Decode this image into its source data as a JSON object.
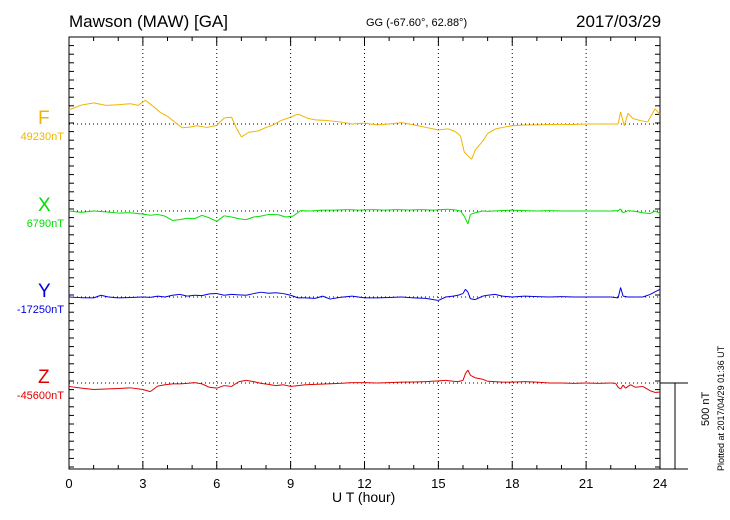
{
  "header": {
    "title": "Mawson (MAW)  [GA]",
    "coords": "GG (-67.60°,  62.88°)",
    "date": "2017/03/29"
  },
  "side_note": "Plotted at 2017/04/29 01:36 UT",
  "scale_label": "500 nT",
  "chart_data": {
    "type": "line",
    "xlabel": "U T (hour)",
    "xlim": [
      0,
      24
    ],
    "x_ticks": [
      0,
      3,
      6,
      9,
      12,
      15,
      18,
      21,
      24
    ],
    "x_tick_labels": [
      "0",
      "3",
      "6",
      "9",
      "12",
      "15",
      "18",
      "21",
      "24"
    ],
    "scale_bar_nT": 500,
    "grid": "dotted baselines",
    "series": [
      {
        "name": "F",
        "baseline_label": "49230nT",
        "baseline_nT": 49230,
        "color": "#f0b400",
        "points": [
          [
            0,
            82
          ],
          [
            0.5,
            110
          ],
          [
            1,
            123
          ],
          [
            1.5,
            108
          ],
          [
            2,
            112
          ],
          [
            2.5,
            118
          ],
          [
            2.8,
            108
          ],
          [
            3.1,
            138
          ],
          [
            3.4,
            105
          ],
          [
            3.7,
            68
          ],
          [
            4,
            45
          ],
          [
            4.3,
            10
          ],
          [
            4.6,
            -22
          ],
          [
            4.9,
            -18
          ],
          [
            5.2,
            -10
          ],
          [
            5.6,
            -20
          ],
          [
            6,
            -8
          ],
          [
            6.3,
            35
          ],
          [
            6.6,
            40
          ],
          [
            6.8,
            -25
          ],
          [
            7,
            -75
          ],
          [
            7.3,
            -48
          ],
          [
            7.7,
            -40
          ],
          [
            8,
            -20
          ],
          [
            8.3,
            -5
          ],
          [
            8.6,
            20
          ],
          [
            9,
            40
          ],
          [
            9.3,
            58
          ],
          [
            9.7,
            33
          ],
          [
            10,
            24
          ],
          [
            10.5,
            20
          ],
          [
            11,
            12
          ],
          [
            11.5,
            0
          ],
          [
            12,
            5
          ],
          [
            12.5,
            -5
          ],
          [
            13,
            0
          ],
          [
            13.5,
            8
          ],
          [
            14,
            -5
          ],
          [
            14.5,
            -20
          ],
          [
            15,
            -35
          ],
          [
            15.4,
            -28
          ],
          [
            15.7,
            -45
          ],
          [
            15.9,
            -70
          ],
          [
            16.05,
            -162
          ],
          [
            16.2,
            -185
          ],
          [
            16.35,
            -205
          ],
          [
            16.5,
            -150
          ],
          [
            16.8,
            -100
          ],
          [
            17,
            -55
          ],
          [
            17.3,
            -30
          ],
          [
            17.6,
            -20
          ],
          [
            18,
            -10
          ],
          [
            18.5,
            -6
          ],
          [
            19,
            -5
          ],
          [
            19.5,
            -3
          ],
          [
            20,
            -2
          ],
          [
            20.5,
            -3
          ],
          [
            21,
            0
          ],
          [
            21.5,
            0
          ],
          [
            22,
            0
          ],
          [
            22.3,
            0
          ],
          [
            22.4,
            70
          ],
          [
            22.55,
            -10
          ],
          [
            22.7,
            62
          ],
          [
            22.9,
            32
          ],
          [
            23.2,
            20
          ],
          [
            23.5,
            12
          ],
          [
            23.8,
            88
          ],
          [
            24,
            55
          ]
        ]
      },
      {
        "name": "X",
        "baseline_label": "6790nT",
        "baseline_nT": 6790,
        "color": "#00e000",
        "points": [
          [
            0,
            0
          ],
          [
            0.5,
            -8
          ],
          [
            1,
            0
          ],
          [
            1.5,
            -5
          ],
          [
            2,
            -12
          ],
          [
            2.5,
            -10
          ],
          [
            3,
            -18
          ],
          [
            3.3,
            -25
          ],
          [
            3.6,
            -20
          ],
          [
            3.9,
            -30
          ],
          [
            4.2,
            -55
          ],
          [
            4.5,
            -50
          ],
          [
            4.8,
            -42
          ],
          [
            5.1,
            -45
          ],
          [
            5.4,
            -25
          ],
          [
            5.7,
            -40
          ],
          [
            6,
            -60
          ],
          [
            6.3,
            -28
          ],
          [
            6.6,
            -35
          ],
          [
            6.9,
            -45
          ],
          [
            7.2,
            -50
          ],
          [
            7.5,
            -35
          ],
          [
            7.8,
            -30
          ],
          [
            8.1,
            -20
          ],
          [
            8.5,
            -22
          ],
          [
            8.8,
            -35
          ],
          [
            9.1,
            -30
          ],
          [
            9.4,
            2
          ],
          [
            9.8,
            0
          ],
          [
            10.3,
            5
          ],
          [
            10.8,
            5
          ],
          [
            11.3,
            8
          ],
          [
            11.8,
            5
          ],
          [
            12.3,
            8
          ],
          [
            12.8,
            5
          ],
          [
            13.3,
            8
          ],
          [
            13.8,
            6
          ],
          [
            14.3,
            8
          ],
          [
            14.8,
            5
          ],
          [
            15.1,
            8
          ],
          [
            15.4,
            10
          ],
          [
            15.7,
            6
          ],
          [
            15.9,
            0
          ],
          [
            16.05,
            -30
          ],
          [
            16.2,
            -75
          ],
          [
            16.3,
            -20
          ],
          [
            16.5,
            -10
          ],
          [
            16.8,
            0
          ],
          [
            17,
            -2
          ],
          [
            17.5,
            2
          ],
          [
            18,
            5
          ],
          [
            18.5,
            2
          ],
          [
            19,
            0
          ],
          [
            19.5,
            2
          ],
          [
            20,
            0
          ],
          [
            20.5,
            0
          ],
          [
            21,
            0
          ],
          [
            21.5,
            0
          ],
          [
            22,
            0
          ],
          [
            22.3,
            2
          ],
          [
            22.4,
            12
          ],
          [
            22.5,
            -10
          ],
          [
            22.7,
            2
          ],
          [
            23,
            -2
          ],
          [
            23.3,
            -10
          ],
          [
            23.6,
            -15
          ],
          [
            23.8,
            0
          ],
          [
            24,
            -15
          ]
        ]
      },
      {
        "name": "Y",
        "baseline_label": "-17250nT",
        "baseline_nT": -17250,
        "color": "#0000e0",
        "points": [
          [
            0,
            0
          ],
          [
            0.5,
            -4
          ],
          [
            1,
            -5
          ],
          [
            1.3,
            10
          ],
          [
            1.6,
            0
          ],
          [
            2,
            -5
          ],
          [
            2.5,
            -3
          ],
          [
            3,
            0
          ],
          [
            3.3,
            -2
          ],
          [
            3.6,
            5
          ],
          [
            3.9,
            0
          ],
          [
            4.2,
            10
          ],
          [
            4.5,
            15
          ],
          [
            4.8,
            5
          ],
          [
            5.1,
            10
          ],
          [
            5.4,
            8
          ],
          [
            5.7,
            18
          ],
          [
            6,
            20
          ],
          [
            6.3,
            10
          ],
          [
            6.6,
            15
          ],
          [
            6.9,
            12
          ],
          [
            7.2,
            10
          ],
          [
            7.5,
            20
          ],
          [
            7.8,
            28
          ],
          [
            8.1,
            22
          ],
          [
            8.4,
            25
          ],
          [
            8.7,
            20
          ],
          [
            9,
            10
          ],
          [
            9.3,
            -5
          ],
          [
            9.6,
            -5
          ],
          [
            10,
            -8
          ],
          [
            10.3,
            5
          ],
          [
            10.6,
            -12
          ],
          [
            11,
            -2
          ],
          [
            11.5,
            5
          ],
          [
            12,
            -5
          ],
          [
            12.5,
            -5
          ],
          [
            13,
            -3
          ],
          [
            13.5,
            0
          ],
          [
            14,
            -5
          ],
          [
            14.5,
            -8
          ],
          [
            14.8,
            -15
          ],
          [
            15,
            -20
          ],
          [
            15.3,
            0
          ],
          [
            15.6,
            5
          ],
          [
            15.8,
            10
          ],
          [
            16,
            20
          ],
          [
            16.1,
            45
          ],
          [
            16.2,
            28
          ],
          [
            16.3,
            -10
          ],
          [
            16.5,
            -15
          ],
          [
            16.8,
            5
          ],
          [
            17,
            10
          ],
          [
            17.3,
            15
          ],
          [
            17.6,
            5
          ],
          [
            18,
            0
          ],
          [
            18.5,
            5
          ],
          [
            19,
            2
          ],
          [
            19.5,
            0
          ],
          [
            20,
            2
          ],
          [
            20.5,
            0
          ],
          [
            21,
            0
          ],
          [
            21.5,
            0
          ],
          [
            22,
            0
          ],
          [
            22.3,
            -5
          ],
          [
            22.4,
            55
          ],
          [
            22.5,
            5
          ],
          [
            22.7,
            0
          ],
          [
            23,
            0
          ],
          [
            23.3,
            0
          ],
          [
            23.6,
            15
          ],
          [
            23.8,
            30
          ],
          [
            24,
            45
          ]
        ]
      },
      {
        "name": "Z",
        "baseline_label": "-45600nT",
        "baseline_nT": -45600,
        "color": "#e00000",
        "points": [
          [
            0,
            -20
          ],
          [
            0.5,
            -30
          ],
          [
            1,
            -38
          ],
          [
            1.5,
            -35
          ],
          [
            2,
            -32
          ],
          [
            2.5,
            -28
          ],
          [
            3,
            -38
          ],
          [
            3.3,
            -50
          ],
          [
            3.6,
            -18
          ],
          [
            3.9,
            -10
          ],
          [
            4.2,
            -5
          ],
          [
            4.5,
            -5
          ],
          [
            4.8,
            -2
          ],
          [
            5.1,
            2
          ],
          [
            5.4,
            -5
          ],
          [
            5.7,
            -25
          ],
          [
            6,
            -30
          ],
          [
            6.3,
            -15
          ],
          [
            6.6,
            -20
          ],
          [
            6.9,
            8
          ],
          [
            7.2,
            15
          ],
          [
            7.5,
            8
          ],
          [
            7.8,
            -2
          ],
          [
            8.1,
            -8
          ],
          [
            8.4,
            -15
          ],
          [
            8.7,
            -10
          ],
          [
            9,
            -20
          ],
          [
            9.3,
            -15
          ],
          [
            9.6,
            -10
          ],
          [
            10,
            -8
          ],
          [
            10.5,
            -5
          ],
          [
            11,
            -2
          ],
          [
            11.5,
            2
          ],
          [
            12,
            2
          ],
          [
            12.5,
            0
          ],
          [
            13,
            2
          ],
          [
            13.5,
            5
          ],
          [
            14,
            6
          ],
          [
            14.5,
            8
          ],
          [
            15,
            12
          ],
          [
            15.3,
            15
          ],
          [
            15.6,
            10
          ],
          [
            15.8,
            8
          ],
          [
            16,
            15
          ],
          [
            16.1,
            55
          ],
          [
            16.2,
            75
          ],
          [
            16.3,
            45
          ],
          [
            16.5,
            30
          ],
          [
            16.8,
            22
          ],
          [
            17,
            10
          ],
          [
            17.3,
            8
          ],
          [
            17.6,
            5
          ],
          [
            18,
            5
          ],
          [
            18.5,
            8
          ],
          [
            19,
            5
          ],
          [
            19.5,
            0
          ],
          [
            20,
            0
          ],
          [
            20.5,
            -2
          ],
          [
            21,
            0
          ],
          [
            21.5,
            -2
          ],
          [
            22,
            0
          ],
          [
            22.2,
            -2
          ],
          [
            22.3,
            -25
          ],
          [
            22.4,
            -35
          ],
          [
            22.5,
            -12
          ],
          [
            22.6,
            -30
          ],
          [
            22.8,
            -10
          ],
          [
            23,
            -25
          ],
          [
            23.3,
            -20
          ],
          [
            23.6,
            -45
          ],
          [
            23.8,
            -55
          ],
          [
            24,
            -52
          ]
        ]
      }
    ]
  }
}
